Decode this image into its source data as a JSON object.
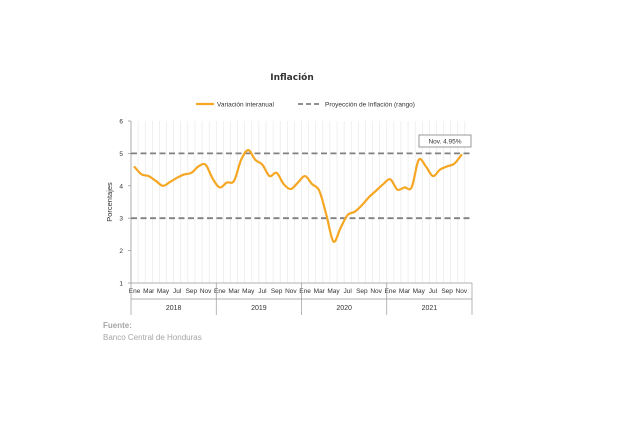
{
  "chart_data": {
    "type": "line",
    "title": "Inflación",
    "ylabel": "Porcentajes",
    "ylim": [
      1,
      6
    ],
    "yticks": [
      1,
      2,
      3,
      4,
      5,
      6
    ],
    "grid": "vertical",
    "legend_position": "top",
    "month_tick_labels": [
      "Ene",
      "Mar",
      "May",
      "Jul",
      "Sep",
      "Nov"
    ],
    "years": [
      "2018",
      "2019",
      "2020",
      "2021"
    ],
    "series": [
      {
        "name": "Variación interanual",
        "color": "#f5a623",
        "x": [
          "2018-01",
          "2018-02",
          "2018-03",
          "2018-04",
          "2018-05",
          "2018-06",
          "2018-07",
          "2018-08",
          "2018-09",
          "2018-10",
          "2018-11",
          "2018-12",
          "2019-01",
          "2019-02",
          "2019-03",
          "2019-04",
          "2019-05",
          "2019-06",
          "2019-07",
          "2019-08",
          "2019-09",
          "2019-10",
          "2019-11",
          "2019-12",
          "2020-01",
          "2020-02",
          "2020-03",
          "2020-04",
          "2020-05",
          "2020-06",
          "2020-07",
          "2020-08",
          "2020-09",
          "2020-10",
          "2020-11",
          "2020-12",
          "2021-01",
          "2021-02",
          "2021-03",
          "2021-04",
          "2021-05",
          "2021-06",
          "2021-07",
          "2021-08",
          "2021-09",
          "2021-10",
          "2021-11"
        ],
        "values": [
          4.58,
          4.35,
          4.3,
          4.15,
          4.0,
          4.12,
          4.25,
          4.35,
          4.4,
          4.6,
          4.65,
          4.22,
          3.95,
          4.1,
          4.15,
          4.8,
          5.1,
          4.8,
          4.65,
          4.3,
          4.4,
          4.05,
          3.9,
          4.1,
          4.3,
          4.05,
          3.85,
          3.1,
          2.28,
          2.7,
          3.1,
          3.2,
          3.4,
          3.65,
          3.85,
          4.05,
          4.2,
          3.88,
          3.95,
          3.95,
          4.8,
          4.6,
          4.3,
          4.5,
          4.6,
          4.68,
          4.95
        ]
      },
      {
        "name": "Proyección de Inflación (rango)",
        "color": "#808080",
        "dashed": true,
        "values": [
          3.0,
          5.0
        ]
      }
    ],
    "annotation": {
      "text": "Nov. 4.95%",
      "x": "2021-11",
      "y": 4.95
    }
  },
  "source": {
    "label": "Fuente:",
    "text": "Banco Central de Honduras"
  }
}
